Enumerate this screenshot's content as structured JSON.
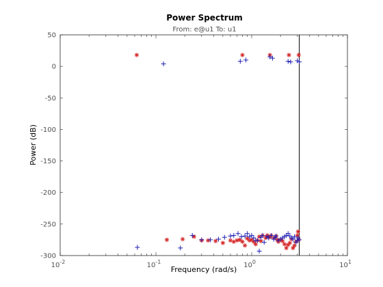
{
  "chart_data": {
    "type": "scatter",
    "title": "Power Spectrum",
    "subtitle": "From: e@u1   To: u1",
    "xlabel": "Frequency  (rad/s)",
    "ylabel": "Power (dB)",
    "x_scale": "log",
    "xlim": [
      0.01,
      10
    ],
    "ylim": [
      -300,
      50
    ],
    "x_ticks": [
      0.01,
      0.1,
      1,
      10
    ],
    "x_tick_labels": [
      [
        "10",
        "-2"
      ],
      [
        "10",
        "-1"
      ],
      [
        "10",
        "0"
      ],
      [
        "10",
        "1"
      ]
    ],
    "y_ticks": [
      50,
      0,
      -50,
      -100,
      -150,
      -200,
      -250,
      -300
    ],
    "y_tick_labels": [
      "50",
      "0",
      "-50",
      "-100",
      "-150",
      "-200",
      "-250",
      "-300"
    ],
    "grid": false,
    "vertical_line_x": 3.14,
    "series": [
      {
        "marker": "*",
        "color": "#d62728",
        "points": [
          [
            0.063,
            18
          ],
          [
            0.8,
            18
          ],
          [
            1.55,
            18
          ],
          [
            2.45,
            18
          ],
          [
            3.1,
            18
          ],
          [
            0.13,
            -275
          ],
          [
            0.19,
            -274
          ],
          [
            0.25,
            -270
          ],
          [
            0.3,
            -276
          ],
          [
            0.35,
            -276
          ],
          [
            0.42,
            -277
          ],
          [
            0.5,
            -280
          ],
          [
            0.6,
            -276
          ],
          [
            0.65,
            -278
          ],
          [
            0.7,
            -276
          ],
          [
            0.75,
            -275
          ],
          [
            0.8,
            -278
          ],
          [
            0.85,
            -284
          ],
          [
            0.9,
            -273
          ],
          [
            0.95,
            -276
          ],
          [
            1.0,
            -275
          ],
          [
            1.05,
            -278
          ],
          [
            1.1,
            -282
          ],
          [
            1.15,
            -276
          ],
          [
            1.2,
            -270
          ],
          [
            1.25,
            -277
          ],
          [
            1.3,
            -268
          ],
          [
            1.4,
            -272
          ],
          [
            1.45,
            -268
          ],
          [
            1.5,
            -270
          ],
          [
            1.55,
            -271
          ],
          [
            1.6,
            -268
          ],
          [
            1.7,
            -272
          ],
          [
            1.8,
            -269
          ],
          [
            1.85,
            -275
          ],
          [
            1.9,
            -278
          ],
          [
            2.0,
            -275
          ],
          [
            2.1,
            -277
          ],
          [
            2.2,
            -282
          ],
          [
            2.3,
            -288
          ],
          [
            2.4,
            -283
          ],
          [
            2.5,
            -280
          ],
          [
            2.6,
            -274
          ],
          [
            2.7,
            -288
          ],
          [
            2.8,
            -284
          ],
          [
            2.9,
            -278
          ],
          [
            3.0,
            -268
          ],
          [
            3.05,
            -262
          ],
          [
            3.1,
            -275
          ]
        ]
      },
      {
        "marker": "+",
        "color": "#1f1fb4",
        "points": [
          [
            0.12,
            4
          ],
          [
            0.76,
            8
          ],
          [
            0.87,
            10
          ],
          [
            1.55,
            15
          ],
          [
            1.65,
            13
          ],
          [
            2.4,
            8
          ],
          [
            2.55,
            7
          ],
          [
            3.0,
            9
          ],
          [
            3.14,
            7
          ],
          [
            0.064,
            -287
          ],
          [
            0.18,
            -288
          ],
          [
            0.24,
            -268
          ],
          [
            0.3,
            -275
          ],
          [
            0.37,
            -275
          ],
          [
            0.45,
            -274
          ],
          [
            0.52,
            -271
          ],
          [
            0.6,
            -269
          ],
          [
            0.65,
            -268
          ],
          [
            0.72,
            -265
          ],
          [
            0.78,
            -270
          ],
          [
            0.85,
            -269
          ],
          [
            0.9,
            -265
          ],
          [
            0.95,
            -270
          ],
          [
            1.0,
            -268
          ],
          [
            1.05,
            -272
          ],
          [
            1.1,
            -276
          ],
          [
            1.15,
            -276
          ],
          [
            1.2,
            -293
          ],
          [
            1.25,
            -271
          ],
          [
            1.3,
            -268
          ],
          [
            1.35,
            -279
          ],
          [
            1.45,
            -270
          ],
          [
            1.5,
            -272
          ],
          [
            1.6,
            -268
          ],
          [
            1.7,
            -274
          ],
          [
            1.75,
            -271
          ],
          [
            1.8,
            -269
          ],
          [
            1.9,
            -276
          ],
          [
            2.0,
            -274
          ],
          [
            2.1,
            -272
          ],
          [
            2.2,
            -270
          ],
          [
            2.3,
            -268
          ],
          [
            2.4,
            -265
          ],
          [
            2.5,
            -269
          ],
          [
            2.6,
            -272
          ],
          [
            2.7,
            -274
          ],
          [
            2.8,
            -270
          ],
          [
            2.9,
            -279
          ],
          [
            3.0,
            -276
          ],
          [
            3.05,
            -272
          ],
          [
            3.14,
            -275
          ]
        ]
      }
    ]
  }
}
